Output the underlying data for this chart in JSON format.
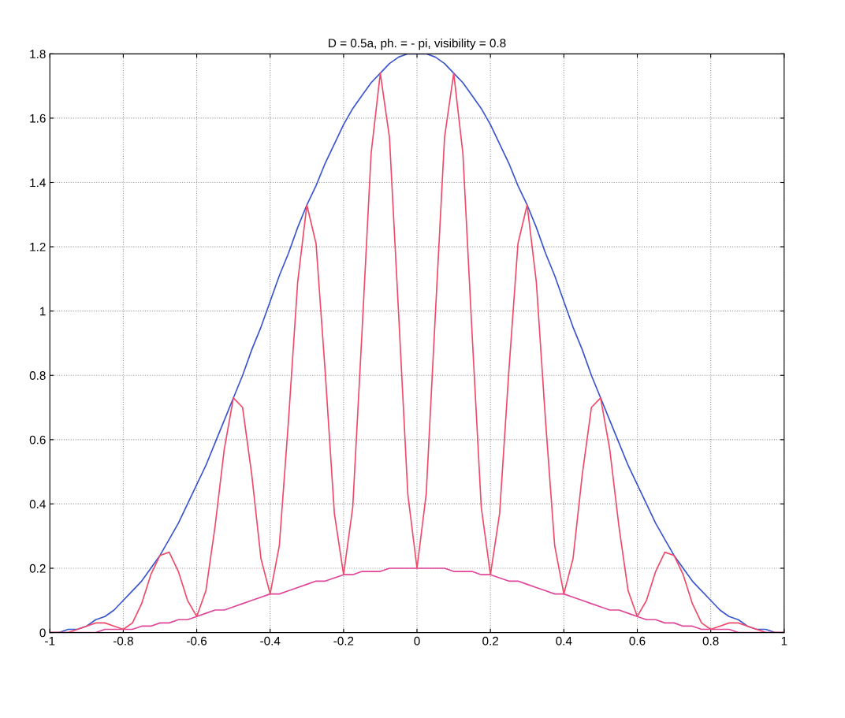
{
  "chart_data": {
    "type": "line",
    "title": "D = 0.5a, ph. = - pi, visibility = 0.8",
    "x": [
      -1,
      -0.975,
      -0.95,
      -0.925,
      -0.9,
      -0.875,
      -0.85,
      -0.825,
      -0.8,
      -0.775,
      -0.75,
      -0.725,
      -0.7,
      -0.675,
      -0.65,
      -0.625,
      -0.6,
      -0.575,
      -0.55,
      -0.525,
      -0.5,
      -0.475,
      -0.45,
      -0.425,
      -0.4,
      -0.375,
      -0.35,
      -0.325,
      -0.3,
      -0.275,
      -0.25,
      -0.225,
      -0.2,
      -0.175,
      -0.15,
      -0.125,
      -0.1,
      -0.075,
      -0.05,
      -0.025,
      0,
      0.025,
      0.05,
      0.075,
      0.1,
      0.125,
      0.15,
      0.175,
      0.2,
      0.225,
      0.25,
      0.275,
      0.3,
      0.325,
      0.35,
      0.375,
      0.4,
      0.425,
      0.45,
      0.475,
      0.5,
      0.525,
      0.55,
      0.575,
      0.6,
      0.625,
      0.65,
      0.675,
      0.7,
      0.725,
      0.75,
      0.775,
      0.8,
      0.825,
      0.85,
      0.875,
      0.9,
      0.925,
      0.95,
      0.975,
      1
    ],
    "series": [
      {
        "color": "#3a55d0",
        "values": [
          0,
          0,
          0.01,
          0.01,
          0.02,
          0.04,
          0.05,
          0.07,
          0.1,
          0.13,
          0.16,
          0.2,
          0.24,
          0.29,
          0.34,
          0.4,
          0.46,
          0.52,
          0.59,
          0.66,
          0.73,
          0.8,
          0.88,
          0.95,
          1.03,
          1.11,
          1.18,
          1.26,
          1.33,
          1.39,
          1.46,
          1.52,
          1.58,
          1.63,
          1.67,
          1.71,
          1.74,
          1.77,
          1.79,
          1.8,
          1.8,
          1.8,
          1.79,
          1.77,
          1.74,
          1.71,
          1.67,
          1.63,
          1.58,
          1.52,
          1.46,
          1.39,
          1.33,
          1.26,
          1.18,
          1.11,
          1.03,
          0.95,
          0.88,
          0.8,
          0.73,
          0.66,
          0.59,
          0.52,
          0.46,
          0.4,
          0.34,
          0.29,
          0.24,
          0.2,
          0.16,
          0.13,
          0.1,
          0.07,
          0.05,
          0.04,
          0.02,
          0.01,
          0.01,
          0,
          0
        ]
      },
      {
        "color": "#e0459a",
        "values": [
          0,
          0,
          0,
          0,
          0,
          0,
          0.01,
          0.01,
          0.01,
          0.01,
          0.02,
          0.02,
          0.03,
          0.03,
          0.04,
          0.04,
          0.05,
          0.06,
          0.07,
          0.07,
          0.08,
          0.09,
          0.1,
          0.11,
          0.12,
          0.12,
          0.13,
          0.14,
          0.15,
          0.16,
          0.16,
          0.17,
          0.18,
          0.18,
          0.19,
          0.19,
          0.19,
          0.2,
          0.2,
          0.2,
          0.2,
          0.2,
          0.2,
          0.2,
          0.19,
          0.19,
          0.19,
          0.18,
          0.18,
          0.17,
          0.16,
          0.16,
          0.15,
          0.14,
          0.13,
          0.12,
          0.12,
          0.11,
          0.1,
          0.09,
          0.08,
          0.07,
          0.07,
          0.06,
          0.05,
          0.04,
          0.04,
          0.03,
          0.03,
          0.02,
          0.02,
          0.01,
          0.01,
          0.01,
          0.01,
          0,
          0,
          0,
          0,
          0,
          0
        ]
      },
      {
        "color": "#f04a6a",
        "values": [
          0,
          0,
          0,
          0.01,
          0.02,
          0.03,
          0.03,
          0.02,
          0.01,
          0.03,
          0.09,
          0.18,
          0.24,
          0.25,
          0.19,
          0.1,
          0.05,
          0.13,
          0.33,
          0.57,
          0.73,
          0.7,
          0.49,
          0.23,
          0.12,
          0.27,
          0.66,
          1.09,
          1.33,
          1.21,
          0.81,
          0.37,
          0.18,
          0.39,
          0.93,
          1.49,
          1.74,
          1.54,
          0.99,
          0.43,
          0.2,
          0.43,
          0.99,
          1.54,
          1.74,
          1.49,
          0.93,
          0.39,
          0.18,
          0.37,
          0.81,
          1.21,
          1.33,
          1.09,
          0.66,
          0.27,
          0.12,
          0.23,
          0.49,
          0.7,
          0.73,
          0.57,
          0.33,
          0.13,
          0.05,
          0.1,
          0.19,
          0.25,
          0.24,
          0.18,
          0.09,
          0.03,
          0.01,
          0.02,
          0.03,
          0.03,
          0.02,
          0.01,
          0,
          0,
          0
        ]
      }
    ],
    "xlim": [
      -1,
      1
    ],
    "xticks": [
      -1,
      -0.8,
      -0.6,
      -0.4,
      -0.2,
      0,
      0.2,
      0.4,
      0.6,
      0.8,
      1
    ],
    "ylim": [
      0,
      1.8
    ],
    "yticks": [
      0,
      0.2,
      0.4,
      0.6,
      0.8,
      1,
      1.2,
      1.4,
      1.6,
      1.8
    ],
    "grid": true,
    "line_style": "solid",
    "marker": "none"
  }
}
